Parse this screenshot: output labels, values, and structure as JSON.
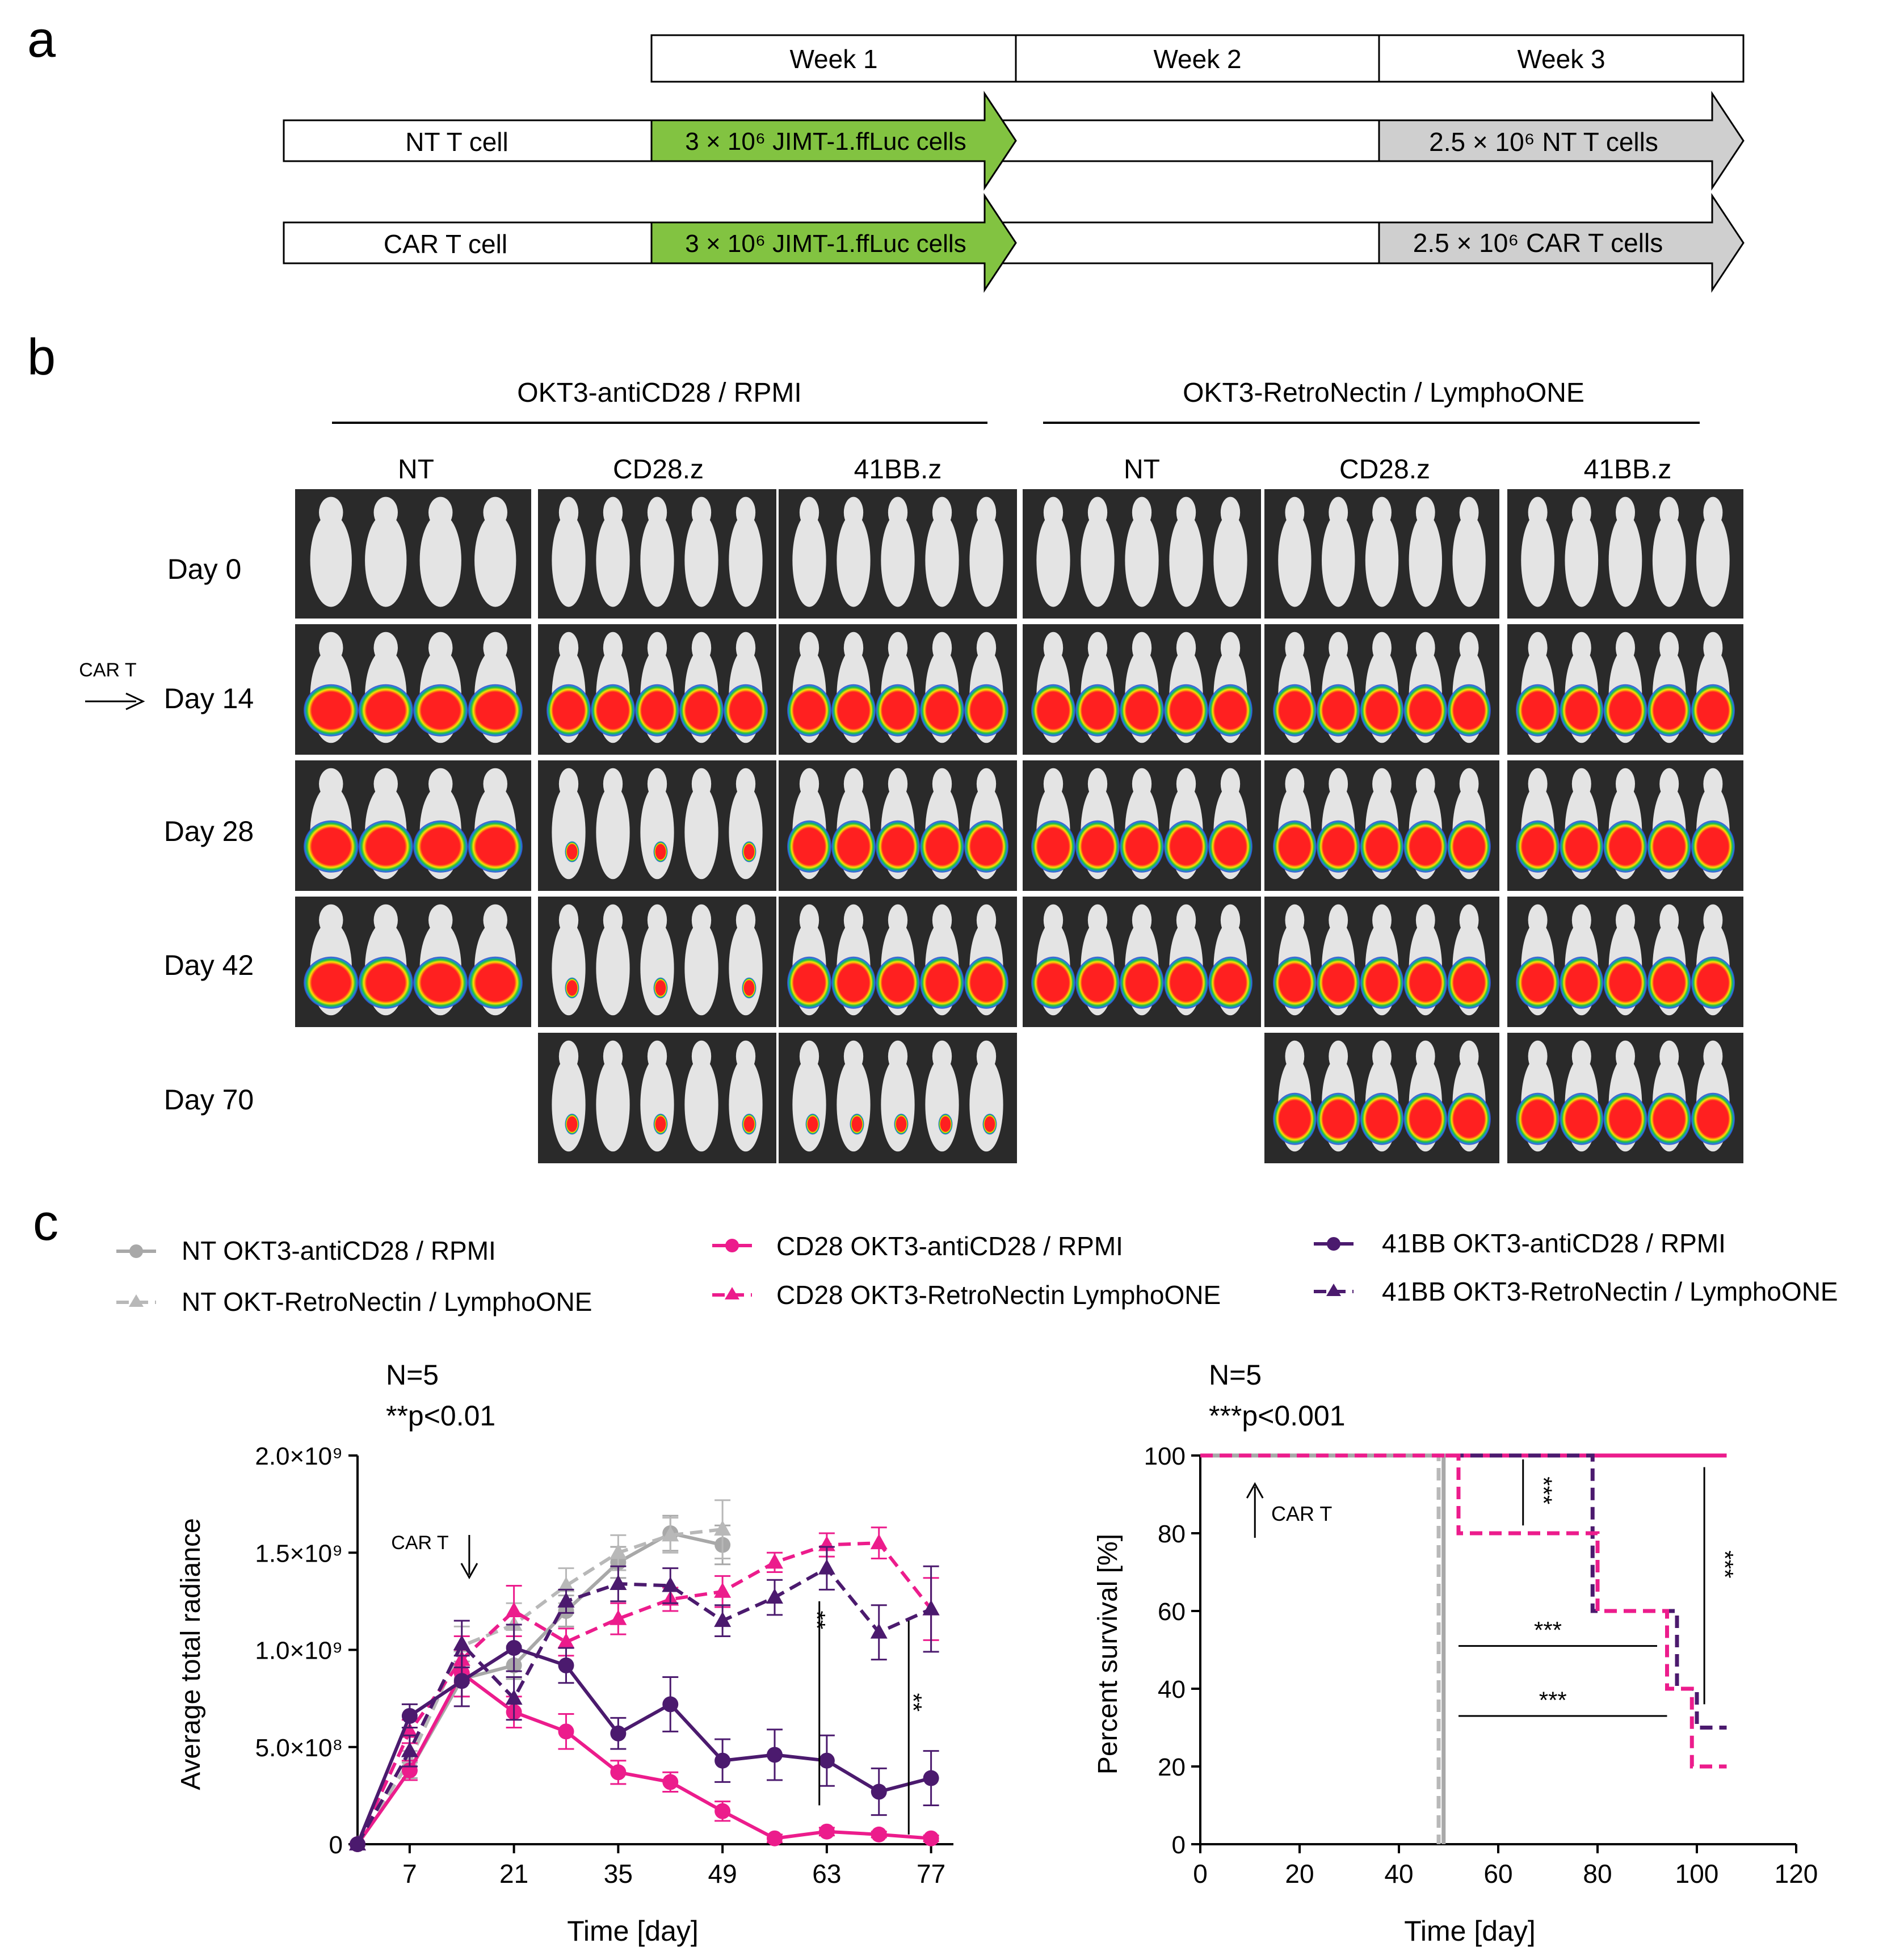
{
  "panels": {
    "a": "a",
    "b": "b",
    "c": "c"
  },
  "timeline": {
    "weeks": [
      "Week 1",
      "Week 2",
      "Week 3"
    ],
    "rows": [
      {
        "label": "NT T cell",
        "tumor": "3 × 10⁶ JIMT-1.ffLuc cells",
        "treatment": "2.5 × 10⁶ NT T cells"
      },
      {
        "label": "CAR T cell",
        "tumor": "3 × 10⁶ JIMT-1.ffLuc cells",
        "treatment": "2.5 × 10⁶ CAR T cells"
      }
    ]
  },
  "imaging": {
    "groups": [
      "OKT3-antiCD28 / RPMI",
      "OKT3-RetroNectin / LymphoONE"
    ],
    "columns": [
      "NT",
      "CD28.z",
      "41BB.z",
      "NT",
      "CD28.z",
      "41BB.z"
    ],
    "days": [
      "Day 0",
      "Day 14",
      "Day 28",
      "Day 42",
      "Day 70"
    ],
    "injection_label": "CAR T",
    "colors": {
      "panel_bg": "#2a2a2a",
      "mouse": "#e4e4e4",
      "signal_core": "#ff2020",
      "signal_edge": "#3050d0"
    }
  },
  "legend": [
    {
      "label": "NT OKT3-antiCD28 / RPMI",
      "color": "#a8a8a8",
      "marker": "circle",
      "dashed": false
    },
    {
      "label": "NT OKT-RetroNectin / LymphoONE",
      "color": "#b8b8b8",
      "marker": "triangle",
      "dashed": true
    },
    {
      "label": "CD28 OKT3-antiCD28 / RPMI",
      "color": "#ec1c8c",
      "marker": "circle",
      "dashed": false
    },
    {
      "label": "CD28 OKT3-RetroNectin LymphoONE",
      "color": "#ec1c8c",
      "marker": "triangle",
      "dashed": true
    },
    {
      "label": "41BB OKT3-antiCD28 / RPMI",
      "color": "#4b1a6e",
      "marker": "circle",
      "dashed": false
    },
    {
      "label": "41BB OKT3-RetroNectin / LymphoONE",
      "color": "#4b1a6e",
      "marker": "triangle",
      "dashed": true
    }
  ],
  "chart_data": [
    {
      "type": "line",
      "annotation_n": "N=5",
      "annotation_p": "**p<0.01",
      "ylabel": "Average total radiance",
      "xlabel": "Time [day]",
      "xlim": [
        0,
        80
      ],
      "ylim": [
        0,
        2000000000
      ],
      "xticks": [
        7,
        21,
        35,
        49,
        63,
        77
      ],
      "xtick_labels": [
        "7",
        "21",
        "35",
        "49",
        "63",
        "77"
      ],
      "yticks": [
        0,
        500000000,
        1000000000,
        1500000000,
        2000000000
      ],
      "ytick_labels": [
        "0",
        "5.0×10⁸",
        "1.0×10⁹",
        "1.5×10⁹",
        "2.0×10⁹"
      ],
      "arrow_label": "CAR T",
      "arrow_day": 15,
      "significance": "**",
      "series": [
        {
          "name": "NT OKT3-antiCD28 / RPMI",
          "x": [
            0,
            7,
            14,
            21,
            28,
            35,
            42,
            49
          ],
          "y": [
            0,
            380000000,
            850000000,
            920000000,
            1200000000,
            1450000000,
            1600000000,
            1540000000
          ],
          "err": [
            0,
            40000000,
            90000000,
            70000000,
            80000000,
            80000000,
            90000000,
            100000000
          ]
        },
        {
          "name": "NT OKT-RetroNectin / LymphoONE",
          "x": [
            0,
            7,
            14,
            21,
            28,
            35,
            42,
            49
          ],
          "y": [
            0,
            430000000,
            1020000000,
            1130000000,
            1330000000,
            1500000000,
            1590000000,
            1620000000
          ],
          "err": [
            0,
            50000000,
            100000000,
            110000000,
            90000000,
            90000000,
            90000000,
            150000000
          ]
        },
        {
          "name": "CD28 OKT3-antiCD28 / RPMI",
          "x": [
            0,
            7,
            14,
            21,
            28,
            35,
            42,
            49,
            56,
            63,
            70,
            77
          ],
          "y": [
            0,
            380000000,
            880000000,
            680000000,
            580000000,
            370000000,
            320000000,
            170000000,
            30000000,
            65000000,
            50000000,
            30000000
          ],
          "err": [
            0,
            50000000,
            120000000,
            80000000,
            90000000,
            60000000,
            50000000,
            50000000,
            20000000,
            20000000,
            15000000,
            15000000
          ]
        },
        {
          "name": "CD28 OKT3-RetroNectin LymphoONE",
          "x": [
            0,
            7,
            14,
            21,
            28,
            35,
            42,
            49,
            56,
            63,
            70,
            77
          ],
          "y": [
            0,
            580000000,
            950000000,
            1200000000,
            1040000000,
            1160000000,
            1260000000,
            1300000000,
            1450000000,
            1540000000,
            1550000000,
            1210000000
          ],
          "err": [
            0,
            60000000,
            120000000,
            130000000,
            70000000,
            80000000,
            60000000,
            80000000,
            50000000,
            60000000,
            80000000,
            160000000
          ]
        },
        {
          "name": "41BB OKT3-antiCD28 / RPMI",
          "x": [
            0,
            7,
            14,
            21,
            28,
            35,
            42,
            49,
            56,
            63,
            70,
            77
          ],
          "y": [
            0,
            660000000,
            840000000,
            1010000000,
            920000000,
            570000000,
            720000000,
            430000000,
            460000000,
            430000000,
            270000000,
            340000000
          ],
          "err": [
            0,
            60000000,
            130000000,
            120000000,
            90000000,
            80000000,
            140000000,
            110000000,
            130000000,
            130000000,
            120000000,
            140000000
          ]
        },
        {
          "name": "41BB OKT3-RetroNectin / LymphoONE",
          "x": [
            0,
            7,
            14,
            21,
            28,
            35,
            42,
            49,
            56,
            63,
            70,
            77
          ],
          "y": [
            0,
            480000000,
            1030000000,
            750000000,
            1250000000,
            1340000000,
            1330000000,
            1150000000,
            1270000000,
            1420000000,
            1090000000,
            1210000000
          ],
          "err": [
            0,
            80000000,
            120000000,
            110000000,
            60000000,
            90000000,
            90000000,
            80000000,
            90000000,
            110000000,
            140000000,
            220000000
          ]
        }
      ]
    },
    {
      "type": "line",
      "subtype": "survival-step",
      "annotation_n": "N=5",
      "annotation_p": "***p<0.001",
      "ylabel": "Percent survival [%]",
      "xlabel": "Time [day]",
      "xlim": [
        0,
        120
      ],
      "ylim": [
        0,
        100
      ],
      "xticks": [
        0,
        20,
        40,
        60,
        80,
        100,
        120
      ],
      "xtick_labels": [
        "0",
        "20",
        "40",
        "60",
        "80",
        "100",
        "120"
      ],
      "yticks": [
        0,
        20,
        40,
        60,
        80,
        100
      ],
      "ytick_labels": [
        "0",
        "20",
        "40",
        "60",
        "80",
        "100"
      ],
      "arrow_label": "CAR T",
      "arrow_day": 11,
      "significance": "***",
      "series": [
        {
          "name": "NT OKT3-antiCD28 / RPMI",
          "x": [
            0,
            49,
            49
          ],
          "y": [
            100,
            100,
            0
          ]
        },
        {
          "name": "NT OKT-RetroNectin / LymphoONE",
          "x": [
            0,
            48,
            48
          ],
          "y": [
            100,
            100,
            0
          ]
        },
        {
          "name": "CD28 OKT3-antiCD28 / RPMI",
          "x": [
            0,
            106
          ],
          "y": [
            100,
            100
          ]
        },
        {
          "name": "CD28 OKT3-RetroNectin LymphoONE",
          "x": [
            0,
            52,
            52,
            80,
            80,
            94,
            94,
            99,
            99,
            106
          ],
          "y": [
            100,
            100,
            80,
            80,
            60,
            60,
            40,
            40,
            20,
            20
          ]
        },
        {
          "name": "41BB OKT3-antiCD28 / RPMI",
          "x": [
            0,
            106
          ],
          "y": [
            100,
            100
          ]
        },
        {
          "name": "41BB OKT3-RetroNectin / LymphoONE",
          "x": [
            0,
            79,
            79,
            96,
            96,
            100,
            100,
            106
          ],
          "y": [
            100,
            100,
            60,
            60,
            40,
            40,
            30,
            30
          ]
        }
      ]
    }
  ]
}
